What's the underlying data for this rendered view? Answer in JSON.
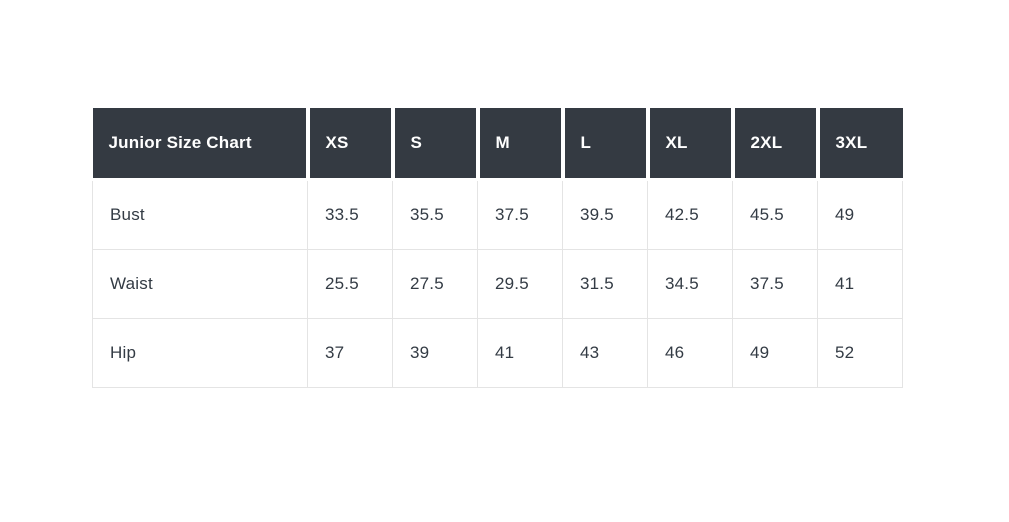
{
  "page": {
    "background": "#ffffff"
  },
  "colors": {
    "header_bg": "#343a42",
    "header_text": "#ffffff",
    "body_text": "#333b44",
    "cell_border": "#e4e4e4"
  },
  "chart_data": {
    "type": "table",
    "title": "Junior Size Chart",
    "columns": [
      "Junior Size Chart",
      "XS",
      "S",
      "M",
      "L",
      "XL",
      "2XL",
      "3XL"
    ],
    "rows": [
      {
        "label": "Bust",
        "values": [
          33.5,
          35.5,
          37.5,
          39.5,
          42.5,
          45.5,
          49
        ]
      },
      {
        "label": "Waist",
        "values": [
          25.5,
          27.5,
          29.5,
          31.5,
          34.5,
          37.5,
          41
        ]
      },
      {
        "label": "Hip",
        "values": [
          37,
          39,
          41,
          43,
          46,
          49,
          52
        ]
      }
    ]
  }
}
